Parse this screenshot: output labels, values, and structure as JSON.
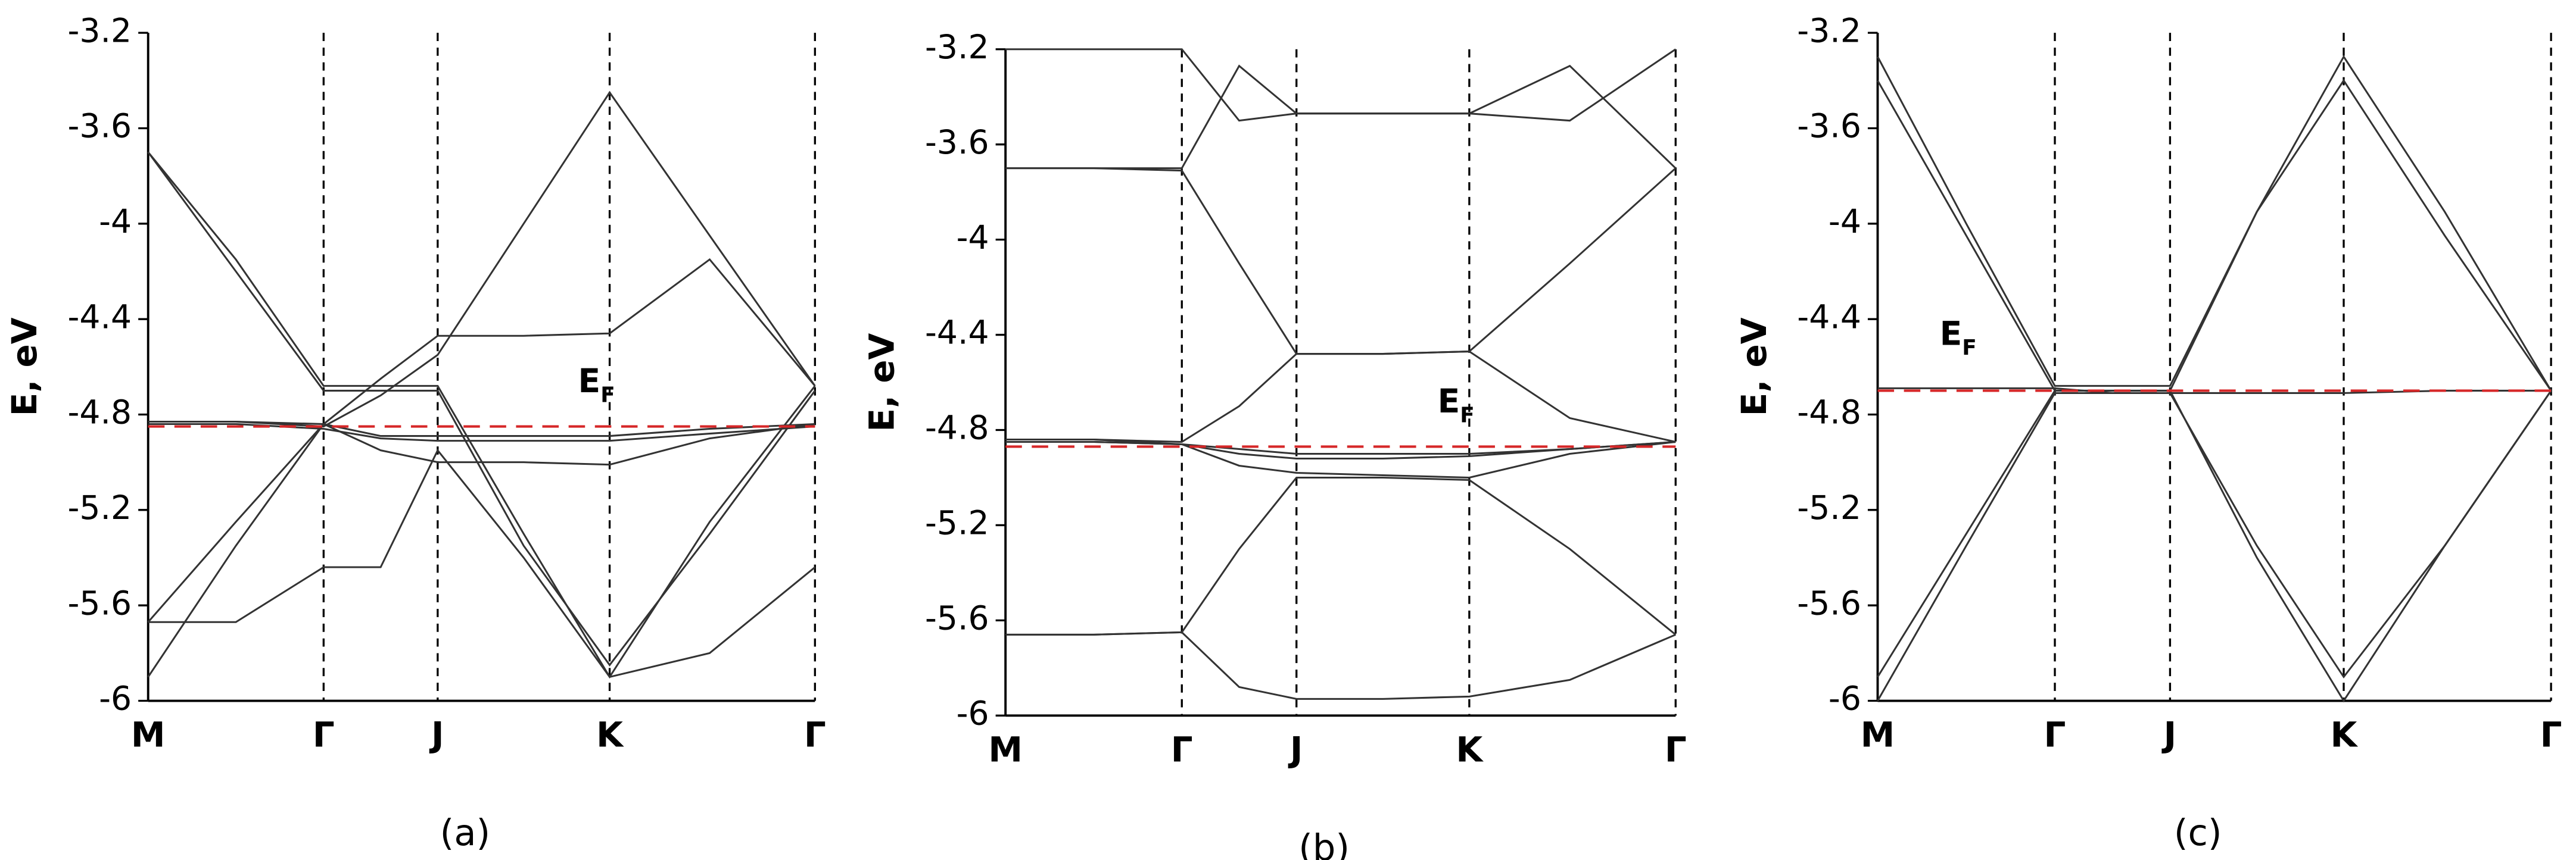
{
  "chart_data": [
    {
      "type": "line",
      "caption": "(a)",
      "ylabel": "E, eV",
      "fermi_label": "E",
      "fermi_sub": "F",
      "fermi_level": -4.85,
      "fermi_color": "#d62728",
      "x": [
        0,
        0.5,
        1,
        1.325,
        1.65,
        2.14,
        2.63,
        3.2,
        3.8
      ],
      "xlim": [
        0,
        3.8
      ],
      "ylim": [
        -6,
        -3.2
      ],
      "xticks": [
        {
          "value": 0,
          "label": "M"
        },
        {
          "value": 1,
          "label": "Γ"
        },
        {
          "value": 1.65,
          "label": "J"
        },
        {
          "value": 2.63,
          "label": "K"
        },
        {
          "value": 3.8,
          "label": "Γ"
        }
      ],
      "yticks": [
        -6,
        -5.6,
        -5.2,
        -4.8,
        -4.4,
        -4,
        -3.6,
        -3.2
      ],
      "series": [
        {
          "color": "#333333",
          "values": [
            -3.7,
            -4.15,
            -4.68,
            -4.68,
            -4.68,
            -5.3,
            -5.9,
            -5.25,
            -4.68
          ]
        },
        {
          "color": "#333333",
          "values": [
            -3.7,
            -4.2,
            -4.7,
            -4.7,
            -4.7,
            -5.35,
            -5.85,
            -5.3,
            -4.7
          ]
        },
        {
          "color": "#333333",
          "values": [
            -4.83,
            -4.83,
            -4.85,
            -4.72,
            -4.55,
            -4.0,
            -3.45,
            -4.05,
            -4.68
          ]
        },
        {
          "color": "#333333",
          "values": [
            -4.83,
            -4.83,
            -4.84,
            -4.89,
            -4.89,
            -4.89,
            -4.89,
            -4.86,
            -4.84
          ]
        },
        {
          "color": "#333333",
          "values": [
            -4.84,
            -4.84,
            -4.86,
            -4.9,
            -4.91,
            -4.91,
            -4.91,
            -4.88,
            -4.85
          ]
        },
        {
          "color": "#333333",
          "values": [
            -5.67,
            -5.25,
            -4.84,
            -4.65,
            -4.47,
            -4.47,
            -4.46,
            -4.15,
            -4.68
          ]
        },
        {
          "color": "#333333",
          "values": [
            -5.9,
            -5.35,
            -4.84,
            -4.95,
            -5.0,
            -5.0,
            -5.01,
            -4.9,
            -4.84
          ]
        },
        {
          "color": "#333333",
          "values": [
            -5.67,
            -5.67,
            -5.44,
            -5.44,
            -4.95,
            -5.4,
            -5.9,
            -5.8,
            -5.44
          ]
        }
      ]
    },
    {
      "type": "line",
      "caption": "(b)",
      "ylabel": "E, eV",
      "fermi_label": "E",
      "fermi_sub": "F",
      "fermi_level": -4.87,
      "fermi_color": "#d62728",
      "x": [
        0,
        0.5,
        1,
        1.325,
        1.65,
        2.14,
        2.63,
        3.2,
        3.8
      ],
      "xlim": [
        0,
        3.8
      ],
      "ylim": [
        -6,
        -3.2
      ],
      "xticks": [
        {
          "value": 0,
          "label": "M"
        },
        {
          "value": 1,
          "label": "Γ"
        },
        {
          "value": 1.65,
          "label": "J"
        },
        {
          "value": 2.63,
          "label": "K"
        },
        {
          "value": 3.8,
          "label": "Γ"
        }
      ],
      "yticks": [
        -6,
        -5.6,
        -5.2,
        -4.8,
        -4.4,
        -4,
        -3.6,
        -3.2
      ],
      "series": [
        {
          "color": "#333333",
          "values": [
            -3.2,
            -3.2,
            -3.2,
            -3.5,
            -3.47,
            -3.47,
            -3.47,
            -3.5,
            -3.2
          ]
        },
        {
          "color": "#333333",
          "values": [
            -3.7,
            -3.7,
            -3.7,
            -3.27,
            -3.47,
            -3.47,
            -3.47,
            -3.27,
            -3.7
          ]
        },
        {
          "color": "#333333",
          "values": [
            -3.7,
            -3.7,
            -3.71,
            -4.1,
            -4.48,
            -4.48,
            -4.47,
            -4.1,
            -3.7
          ]
        },
        {
          "color": "#333333",
          "values": [
            -4.84,
            -4.84,
            -4.85,
            -4.7,
            -4.48,
            -4.48,
            -4.47,
            -4.75,
            -4.85
          ]
        },
        {
          "color": "#333333",
          "values": [
            -4.84,
            -4.84,
            -4.86,
            -4.88,
            -4.9,
            -4.9,
            -4.9,
            -4.88,
            -4.85
          ]
        },
        {
          "color": "#333333",
          "values": [
            -4.85,
            -4.85,
            -4.86,
            -4.9,
            -4.92,
            -4.92,
            -4.91,
            -4.88,
            -4.85
          ]
        },
        {
          "color": "#333333",
          "values": [
            -4.85,
            -4.85,
            -4.86,
            -4.95,
            -4.98,
            -4.99,
            -5.0,
            -4.9,
            -4.85
          ]
        },
        {
          "color": "#333333",
          "values": [
            -5.66,
            -5.66,
            -5.65,
            -5.3,
            -5.0,
            -5.0,
            -5.01,
            -5.3,
            -5.66
          ]
        },
        {
          "color": "#333333",
          "values": [
            -5.66,
            -5.66,
            -5.65,
            -5.88,
            -5.93,
            -5.93,
            -5.92,
            -5.85,
            -5.66
          ]
        }
      ]
    },
    {
      "type": "line",
      "caption": "(c)",
      "ylabel": "E, eV",
      "fermi_label": "E",
      "fermi_sub": "F",
      "fermi_level": -4.7,
      "fermi_color": "#d62728",
      "x": [
        0,
        0.5,
        1,
        1.325,
        1.65,
        2.14,
        2.63,
        3.2,
        3.8
      ],
      "xlim": [
        0,
        3.8
      ],
      "ylim": [
        -6,
        -3.2
      ],
      "xticks": [
        {
          "value": 0,
          "label": "M"
        },
        {
          "value": 1,
          "label": "Γ"
        },
        {
          "value": 1.65,
          "label": "J"
        },
        {
          "value": 2.63,
          "label": "K"
        },
        {
          "value": 3.8,
          "label": "Γ"
        }
      ],
      "yticks": [
        -6,
        -5.6,
        -5.2,
        -4.8,
        -4.4,
        -4,
        -3.6,
        -3.2
      ],
      "series": [
        {
          "color": "#333333",
          "values": [
            -3.3,
            -4.0,
            -4.68,
            -4.68,
            -4.68,
            -3.95,
            -3.4,
            -4.05,
            -4.7
          ]
        },
        {
          "color": "#333333",
          "values": [
            -3.4,
            -4.05,
            -4.7,
            -4.7,
            -4.7,
            -3.95,
            -3.3,
            -3.95,
            -4.7
          ]
        },
        {
          "color": "#333333",
          "values": [
            -4.69,
            -4.69,
            -4.69,
            -4.71,
            -4.71,
            -4.71,
            -4.71,
            -4.7,
            -4.7
          ]
        },
        {
          "color": "#333333",
          "values": [
            -5.9,
            -5.3,
            -4.7,
            -4.7,
            -4.7,
            -5.4,
            -6.0,
            -5.35,
            -4.7
          ]
        },
        {
          "color": "#333333",
          "values": [
            -6.0,
            -5.35,
            -4.71,
            -4.71,
            -4.71,
            -5.35,
            -5.9,
            -5.35,
            -4.7
          ]
        }
      ]
    }
  ]
}
